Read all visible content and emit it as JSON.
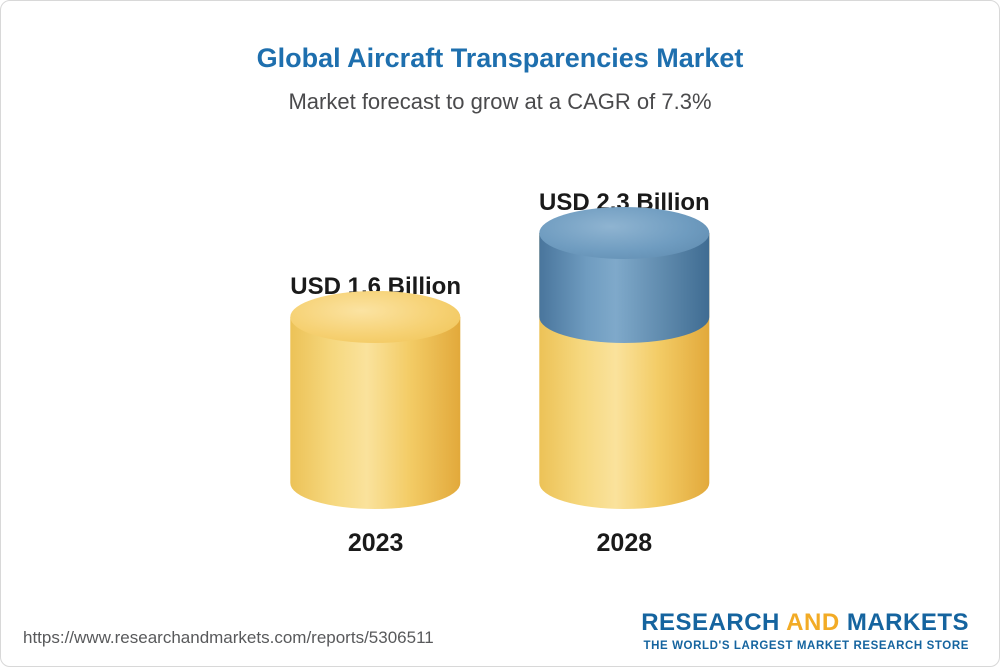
{
  "header": {
    "title": "Global Aircraft Transparencies Market",
    "subtitle": "Market forecast to grow at a CAGR of 7.3%"
  },
  "chart_data": {
    "type": "bar",
    "title": "Global Aircraft Transparencies Market",
    "subtitle": "Market forecast to grow at a CAGR of 7.3%",
    "unit": "USD Billion",
    "categories": [
      "2023",
      "2028"
    ],
    "values": [
      1.6,
      2.3
    ],
    "bars": [
      {
        "year": "2023",
        "label": "USD 1.6 Billion",
        "value": 1.6,
        "color": "#f3cc66"
      },
      {
        "year": "2028",
        "label": "USD 2.3 Billion",
        "value": 2.3,
        "base_color": "#f3cc66",
        "growth_color": "#5d88ab",
        "growth_value": 0.7
      }
    ],
    "cagr": "7.3%",
    "colors": {
      "base": "#f3cc66",
      "growth": "#5d88ab"
    },
    "legend": "none",
    "grid": false
  },
  "footer": {
    "url": "https://www.researchandmarkets.com/reports/5306511",
    "logo": {
      "research": "RESEARCH",
      "and": "AND",
      "markets": "MARKETS",
      "tagline": "THE WORLD'S LARGEST MARKET RESEARCH STORE"
    }
  }
}
